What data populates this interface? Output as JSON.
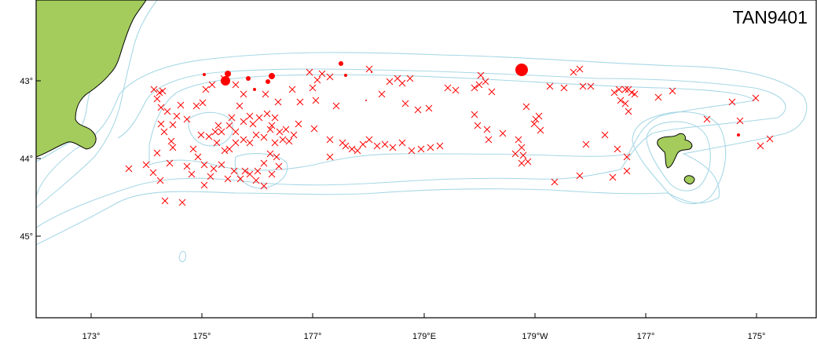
{
  "survey_label": "TAN9401",
  "x_ticks": [
    "173°",
    "175°",
    "177°",
    "179°E",
    "179°W",
    "177°",
    "175°"
  ],
  "y_ticks": [
    "43°",
    "44°",
    "45°"
  ],
  "colors": {
    "land": "#a3cc5c",
    "contour": "#a8d8e6",
    "stations": "#ff0000",
    "frame": "#000000"
  },
  "legend": {
    "x_marker": "x-mark-icon",
    "catch_marker": "filled-circle-icon"
  }
}
